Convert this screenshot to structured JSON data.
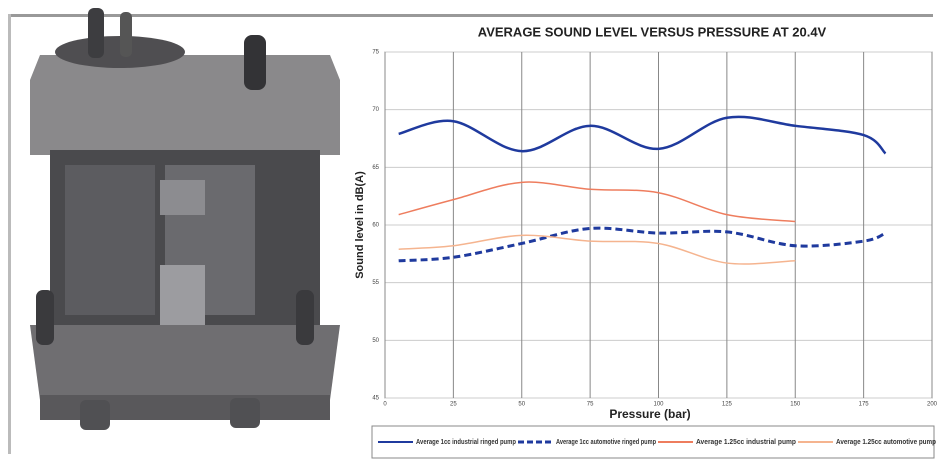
{
  "chart_data": {
    "type": "line",
    "title": "AVERAGE SOUND LEVEL VERSUS PRESSURE AT 20.4V",
    "x_label": "Pressure (bar)",
    "y_label": "Sound level in dB(A)",
    "x": [
      5,
      25,
      50,
      75,
      100,
      125,
      150,
      175,
      183
    ],
    "series": [
      {
        "name": "Average 1cc industrial ringed pump",
        "color": "#1f3a9e",
        "dash": false,
        "values": [
          67.9,
          69.0,
          66.4,
          68.6,
          66.6,
          69.3,
          68.6,
          67.8,
          66.2
        ]
      },
      {
        "name": "Average 1cc automotive ringed pump",
        "color": "#1f3a9e",
        "dash": true,
        "values": [
          56.9,
          57.2,
          58.4,
          59.7,
          59.3,
          59.4,
          58.2,
          58.6,
          59.3
        ]
      },
      {
        "name": "Average 1.25cc industrial pump",
        "color": "#ee7d5e",
        "dash": false,
        "values": [
          60.9,
          62.2,
          63.7,
          63.1,
          62.8,
          60.9,
          60.3,
          null,
          null
        ]
      },
      {
        "name": "Average 1.25cc automotive pump",
        "color": "#f5b48f",
        "dash": false,
        "values": [
          57.9,
          58.2,
          59.1,
          58.6,
          58.4,
          56.7,
          56.9,
          null,
          null
        ]
      }
    ],
    "xlim": [
      0,
      200
    ],
    "xticks": [
      0,
      25,
      50,
      75,
      100,
      125,
      150,
      175,
      200
    ],
    "ylim": [
      45,
      75
    ],
    "yticks": [
      45,
      50,
      55,
      60,
      65,
      70,
      75
    ],
    "grid": true
  }
}
